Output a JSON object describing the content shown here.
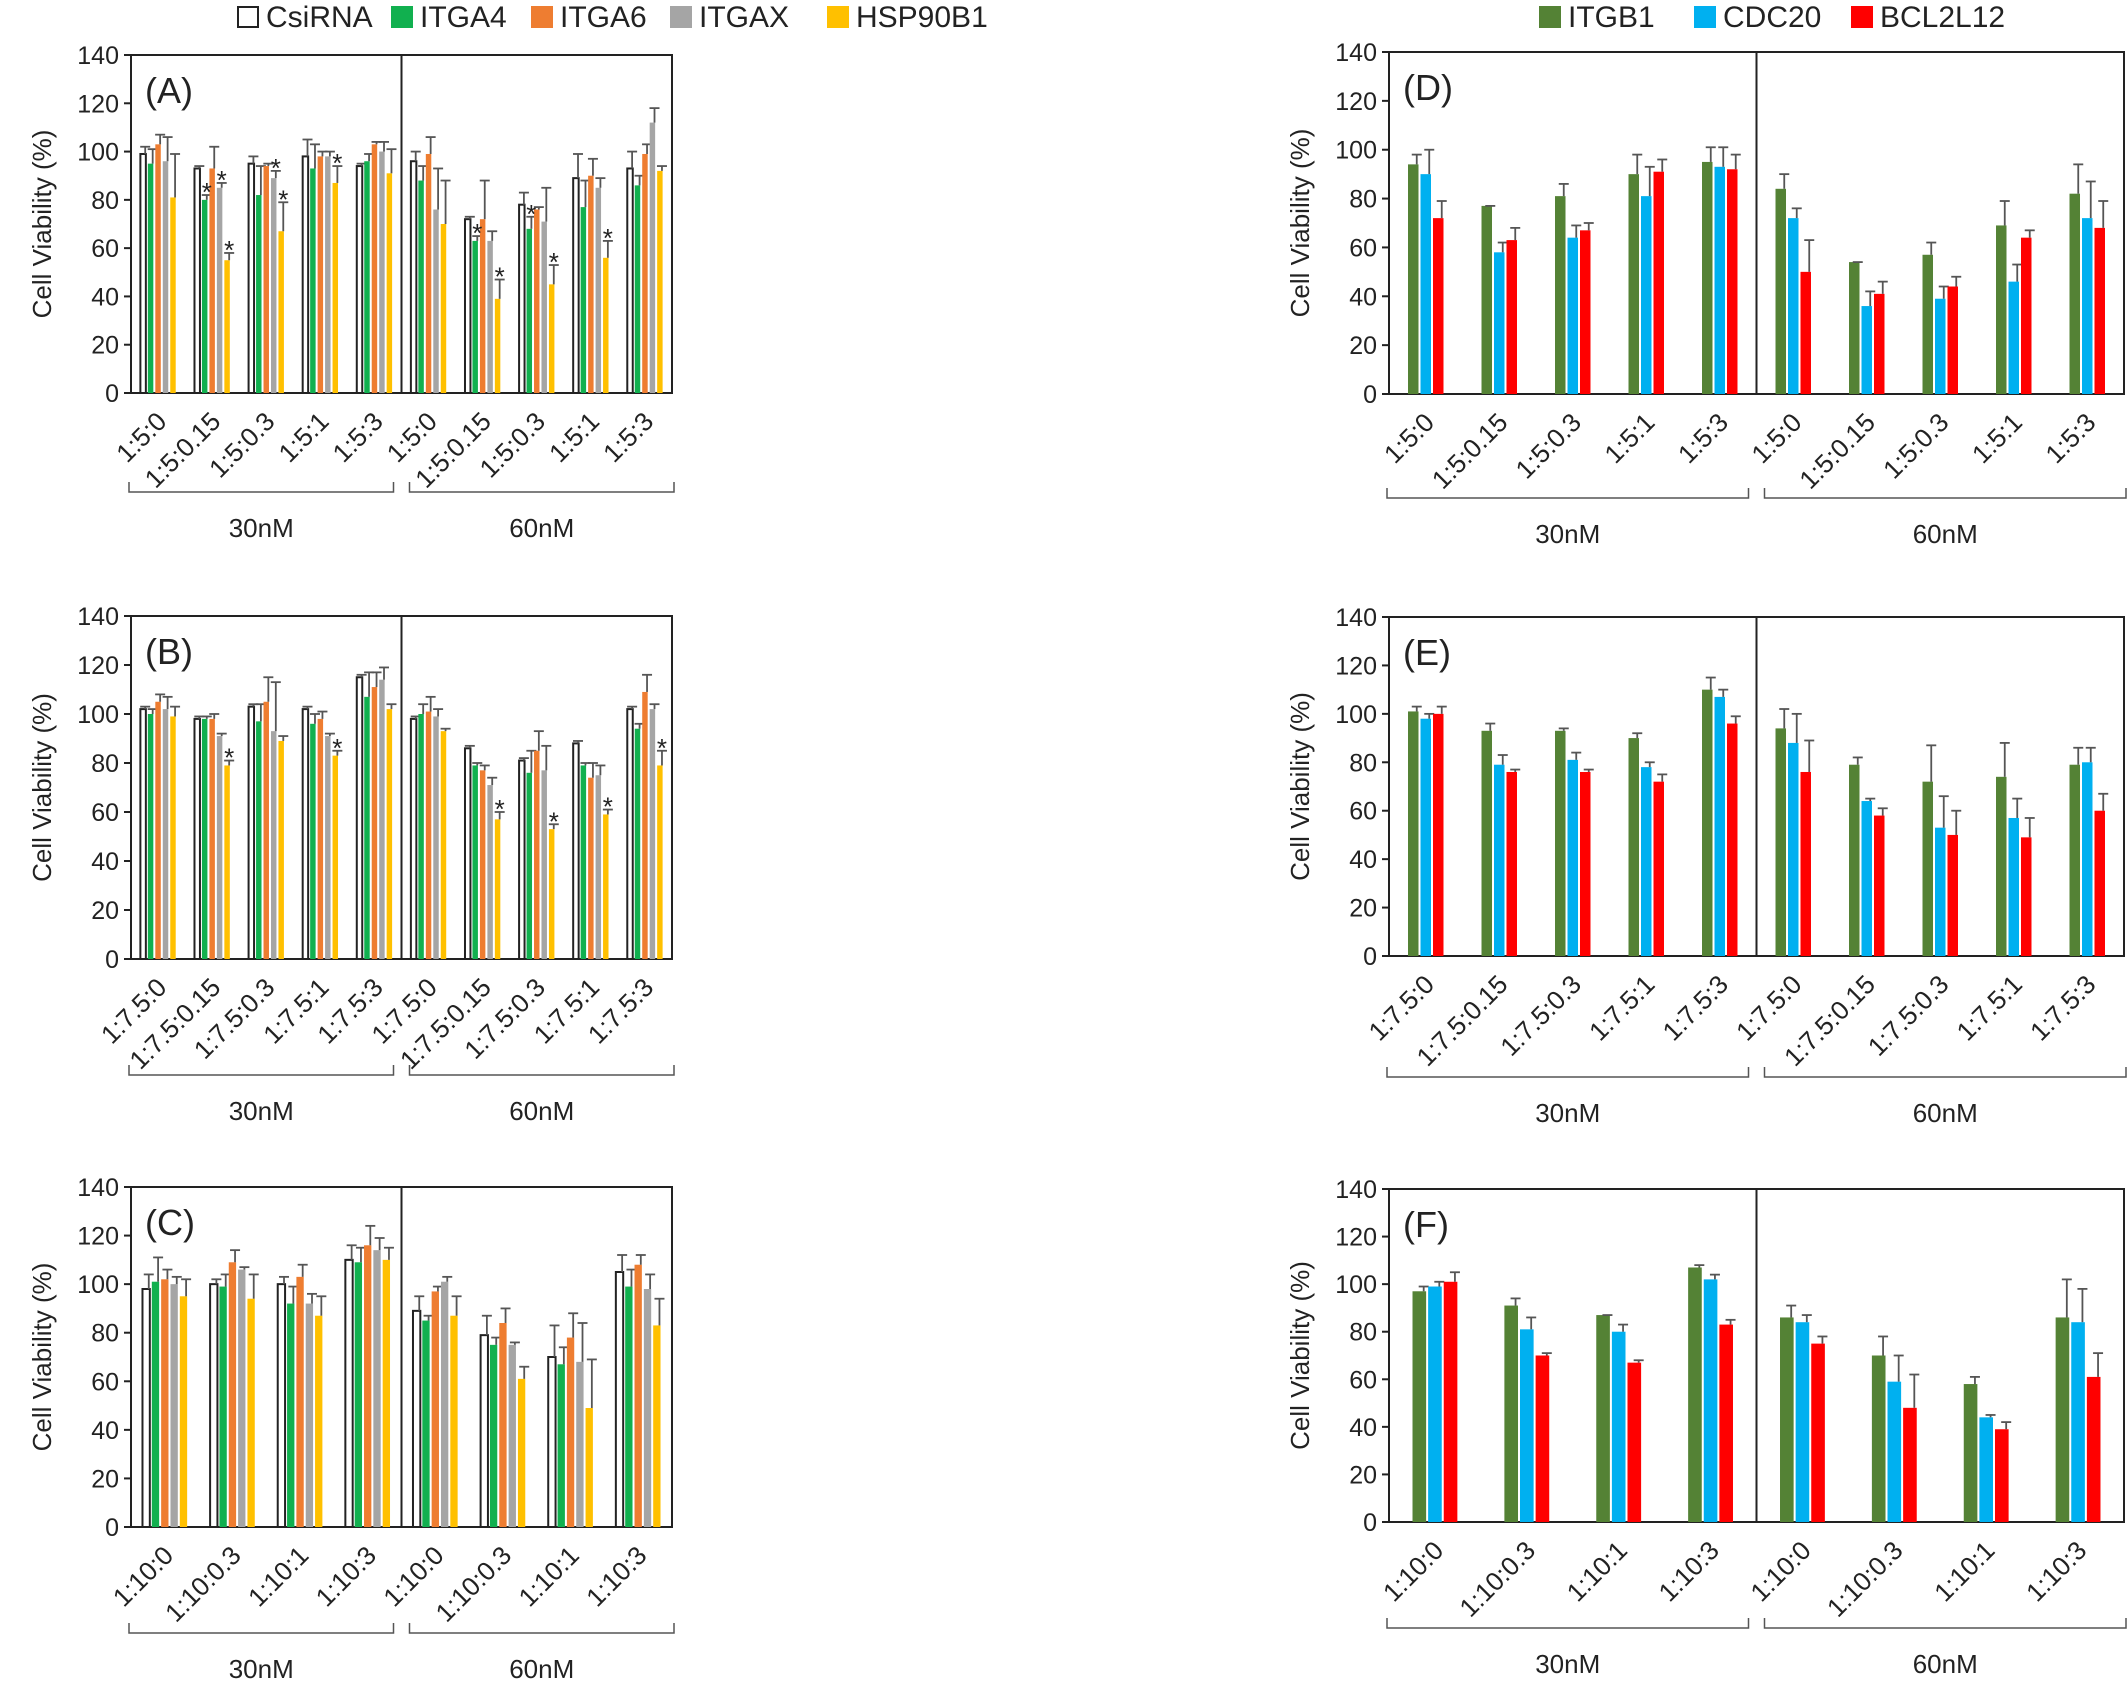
{
  "legend_left": [
    {
      "name": "CsiRNA",
      "color": "#ffffff"
    },
    {
      "name": "ITGA4",
      "color": "#11b04f"
    },
    {
      "name": "ITGA6",
      "color": "#ee7d31"
    },
    {
      "name": "ITGAX",
      "color": "#a5a5a5"
    },
    {
      "name": "HSP90B1",
      "color": "#ffc000"
    }
  ],
  "legend_right": [
    {
      "name": "ITGB1",
      "color": "#548235"
    },
    {
      "name": "CDC20",
      "color": "#00b0f0"
    },
    {
      "name": "BCL2L12",
      "color": "#ff0000"
    }
  ],
  "chart_data": [
    {
      "panel_label": "(A)",
      "type": "bar",
      "ylabel": "Cell Viability (%)",
      "ylim": [
        0,
        140
      ],
      "yticks": [
        0,
        20,
        40,
        60,
        80,
        100,
        120,
        140
      ],
      "groups": [
        {
          "label": "30nM",
          "categories": [
            "1:5:0",
            "1:5:0.15",
            "1:5:0.3",
            "1:5:1",
            "1:5:3"
          ]
        },
        {
          "label": "60nM",
          "categories": [
            "1:5:0",
            "1:5:0.15",
            "1:5:0.3",
            "1:5:1",
            "1:5:3"
          ]
        }
      ],
      "series": [
        {
          "name": "CsiRNA",
          "values": [
            99,
            93,
            95,
            98,
            94,
            96,
            72,
            78,
            89,
            93
          ],
          "errors": [
            3,
            1,
            3,
            7,
            1,
            4,
            1,
            5,
            10,
            7
          ]
        },
        {
          "name": "ITGA4",
          "values": [
            95,
            80,
            82,
            93,
            96,
            88,
            63,
            68,
            77,
            86
          ],
          "errors": [
            6,
            2,
            12,
            10,
            3,
            6,
            2,
            5,
            11,
            4
          ]
        },
        {
          "name": "ITGA6",
          "values": [
            103,
            93,
            94,
            98,
            103,
            99,
            72,
            76,
            90,
            99
          ],
          "errors": [
            4,
            9,
            1,
            2,
            1,
            7,
            16,
            1,
            7,
            4
          ]
        },
        {
          "name": "ITGAX",
          "values": [
            96,
            85,
            89,
            98,
            100,
            76,
            63,
            71,
            85,
            112
          ],
          "errors": [
            10,
            2,
            3,
            2,
            4,
            17,
            4,
            14,
            4,
            6
          ]
        },
        {
          "name": "HSP90B1",
          "values": [
            81,
            55,
            67,
            87,
            91,
            70,
            39,
            45,
            56,
            92
          ],
          "errors": [
            18,
            3,
            12,
            7,
            10,
            18,
            8,
            8,
            7,
            2
          ]
        }
      ],
      "significant": [
        [
          1,
          1
        ],
        [
          1,
          3
        ],
        [
          1,
          4
        ],
        [
          2,
          3
        ],
        [
          2,
          4
        ],
        [
          3,
          4
        ],
        [
          6,
          1
        ],
        [
          6,
          4
        ],
        [
          7,
          1
        ],
        [
          7,
          4
        ],
        [
          8,
          4
        ]
      ]
    },
    {
      "panel_label": "(B)",
      "type": "bar",
      "ylabel": "Cell Viability (%)",
      "ylim": [
        0,
        140
      ],
      "yticks": [
        0,
        20,
        40,
        60,
        80,
        100,
        120,
        140
      ],
      "groups": [
        {
          "label": "30nM",
          "categories": [
            "1:7.5:0",
            "1:7.5:0.15",
            "1:7.5:0.3",
            "1:7.5:1",
            "1:7.5:3"
          ]
        },
        {
          "label": "60nM",
          "categories": [
            "1:7.5:0",
            "1:7.5:0.15",
            "1:7.5:0.3",
            "1:7.5:1",
            "1:7.5:3"
          ]
        }
      ],
      "series": [
        {
          "name": "CsiRNA",
          "values": [
            102,
            98,
            103,
            102,
            115,
            98,
            86,
            81,
            88,
            102
          ],
          "errors": [
            1,
            1,
            1,
            1,
            1,
            1,
            1,
            1,
            1,
            1
          ]
        },
        {
          "name": "ITGA4",
          "values": [
            100,
            98,
            97,
            96,
            107,
            100,
            79,
            76,
            79,
            94
          ],
          "errors": [
            2,
            1,
            7,
            4,
            10,
            4,
            1,
            9,
            1,
            2
          ]
        },
        {
          "name": "ITGA6",
          "values": [
            105,
            98,
            105,
            98,
            111,
            101,
            77,
            85,
            74,
            109
          ],
          "errors": [
            3,
            2,
            10,
            3,
            6,
            6,
            2,
            8,
            6,
            7
          ]
        },
        {
          "name": "ITGAX",
          "values": [
            102,
            91,
            93,
            91,
            114,
            99,
            71,
            77,
            75,
            102
          ],
          "errors": [
            5,
            1,
            20,
            1,
            5,
            3,
            3,
            10,
            4,
            2
          ]
        },
        {
          "name": "HSP90B1",
          "values": [
            99,
            79,
            89,
            83,
            102,
            93,
            57,
            53,
            59,
            79
          ],
          "errors": [
            4,
            2,
            2,
            2,
            2,
            1,
            3,
            2,
            2,
            6
          ]
        }
      ],
      "significant": [
        [
          1,
          4
        ],
        [
          3,
          4
        ],
        [
          6,
          4
        ],
        [
          7,
          4
        ],
        [
          8,
          4
        ],
        [
          9,
          4
        ]
      ]
    },
    {
      "panel_label": "(C)",
      "type": "bar",
      "ylabel": "Cell Viability (%)",
      "ylim": [
        0,
        140
      ],
      "yticks": [
        0,
        20,
        40,
        60,
        80,
        100,
        120,
        140
      ],
      "groups": [
        {
          "label": "30nM",
          "categories": [
            "1:10:0",
            "1:10:0.3",
            "1:10:1",
            "1:10:3"
          ]
        },
        {
          "label": "60nM",
          "categories": [
            "1:10:0",
            "1:10:0.3",
            "1:10:1",
            "1:10:3"
          ]
        }
      ],
      "series": [
        {
          "name": "CsiRNA",
          "values": [
            98,
            100,
            100,
            110,
            89,
            79,
            70,
            105
          ],
          "errors": [
            6,
            2,
            3,
            6,
            6,
            8,
            13,
            7
          ]
        },
        {
          "name": "ITGA4",
          "values": [
            101,
            99,
            92,
            109,
            85,
            75,
            67,
            99
          ],
          "errors": [
            10,
            5,
            7,
            6,
            2,
            3,
            7,
            7
          ]
        },
        {
          "name": "ITGA6",
          "values": [
            102,
            109,
            103,
            116,
            97,
            84,
            78,
            108
          ],
          "errors": [
            4,
            5,
            5,
            8,
            2,
            6,
            10,
            4
          ]
        },
        {
          "name": "ITGAX",
          "values": [
            100,
            106,
            92,
            114,
            101,
            75,
            68,
            98
          ],
          "errors": [
            3,
            1,
            4,
            5,
            2,
            1,
            16,
            6
          ]
        },
        {
          "name": "HSP90B1",
          "values": [
            95,
            94,
            87,
            110,
            87,
            61,
            49,
            83
          ],
          "errors": [
            7,
            10,
            8,
            5,
            8,
            5,
            20,
            11
          ]
        }
      ],
      "significant": []
    },
    {
      "panel_label": "(D)",
      "type": "bar",
      "ylabel": "Cell Viability (%)",
      "ylim": [
        0,
        140
      ],
      "yticks": [
        0,
        20,
        40,
        60,
        80,
        100,
        120,
        140
      ],
      "groups": [
        {
          "label": "30nM",
          "categories": [
            "1:5:0",
            "1:5:0.15",
            "1:5:0.3",
            "1:5:1",
            "1:5:3"
          ]
        },
        {
          "label": "60nM",
          "categories": [
            "1:5:0",
            "1:5:0.15",
            "1:5:0.3",
            "1:5:1",
            "1:5:3"
          ]
        }
      ],
      "series": [
        {
          "name": "ITGB1",
          "values": [
            94,
            77,
            81,
            90,
            95,
            84,
            54,
            57,
            69,
            82
          ],
          "errors": [
            4,
            0,
            5,
            8,
            6,
            6,
            0,
            5,
            10,
            12
          ]
        },
        {
          "name": "CDC20",
          "values": [
            90,
            58,
            64,
            81,
            93,
            72,
            36,
            39,
            46,
            72
          ],
          "errors": [
            10,
            4,
            5,
            12,
            8,
            4,
            6,
            5,
            7,
            15
          ]
        },
        {
          "name": "BCL2L12",
          "values": [
            72,
            63,
            67,
            91,
            92,
            50,
            41,
            44,
            64,
            68
          ],
          "errors": [
            7,
            5,
            3,
            5,
            6,
            13,
            5,
            4,
            3,
            11
          ]
        }
      ],
      "significant": []
    },
    {
      "panel_label": "(E)",
      "type": "bar",
      "ylabel": "Cell Viability (%)",
      "ylim": [
        0,
        140
      ],
      "yticks": [
        0,
        20,
        40,
        60,
        80,
        100,
        120,
        140
      ],
      "groups": [
        {
          "label": "30nM",
          "categories": [
            "1:7.5:0",
            "1:7.5:0.15",
            "1:7.5:0.3",
            "1:7.5:1",
            "1:7.5:3"
          ]
        },
        {
          "label": "60nM",
          "categories": [
            "1:7.5:0",
            "1:7.5:0.15",
            "1:7.5:0.3",
            "1:7.5:1",
            "1:7.5:3"
          ]
        }
      ],
      "series": [
        {
          "name": "ITGB1",
          "values": [
            101,
            93,
            93,
            90,
            110,
            94,
            79,
            72,
            74,
            79
          ],
          "errors": [
            2,
            3,
            1,
            2,
            5,
            8,
            3,
            15,
            14,
            7
          ]
        },
        {
          "name": "CDC20",
          "values": [
            98,
            79,
            81,
            78,
            107,
            88,
            64,
            53,
            57,
            80
          ],
          "errors": [
            2,
            4,
            3,
            2,
            3,
            12,
            1,
            13,
            8,
            6
          ]
        },
        {
          "name": "BCL2L12",
          "values": [
            100,
            76,
            76,
            72,
            96,
            76,
            58,
            50,
            49,
            60
          ],
          "errors": [
            3,
            1,
            1,
            3,
            3,
            13,
            3,
            10,
            8,
            7
          ]
        }
      ],
      "significant": []
    },
    {
      "panel_label": "(F)",
      "type": "bar",
      "ylabel": "Cell Viability (%)",
      "ylim": [
        0,
        140
      ],
      "yticks": [
        0,
        20,
        40,
        60,
        80,
        100,
        120,
        140
      ],
      "groups": [
        {
          "label": "30nM",
          "categories": [
            "1:10:0",
            "1:10:0.3",
            "1:10:1",
            "1:10:3"
          ]
        },
        {
          "label": "60nM",
          "categories": [
            "1:10:0",
            "1:10:0.3",
            "1:10:1",
            "1:10:3"
          ]
        }
      ],
      "series": [
        {
          "name": "ITGB1",
          "values": [
            97,
            91,
            87,
            107,
            86,
            70,
            58,
            86
          ],
          "errors": [
            2,
            3,
            0,
            1,
            5,
            8,
            3,
            16
          ]
        },
        {
          "name": "CDC20",
          "values": [
            99,
            81,
            80,
            102,
            84,
            59,
            44,
            84
          ],
          "errors": [
            2,
            5,
            3,
            2,
            3,
            11,
            1,
            14
          ]
        },
        {
          "name": "BCL2L12",
          "values": [
            101,
            70,
            67,
            83,
            75,
            48,
            39,
            61
          ],
          "errors": [
            4,
            1,
            1,
            2,
            3,
            14,
            3,
            10
          ]
        }
      ],
      "significant": []
    }
  ]
}
